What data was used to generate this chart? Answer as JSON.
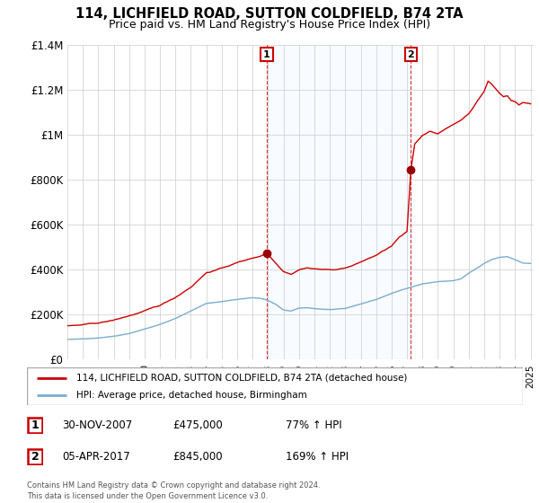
{
  "title": "114, LICHFIELD ROAD, SUTTON COLDFIELD, B74 2TA",
  "subtitle": "Price paid vs. HM Land Registry's House Price Index (HPI)",
  "legend_line1": "114, LICHFIELD ROAD, SUTTON COLDFIELD, B74 2TA (detached house)",
  "legend_line2": "HPI: Average price, detached house, Birmingham",
  "footnote": "Contains HM Land Registry data © Crown copyright and database right 2024.\nThis data is licensed under the Open Government Licence v3.0.",
  "table": [
    {
      "num": "1",
      "date": "30-NOV-2007",
      "price": "£475,000",
      "change": "77% ↑ HPI"
    },
    {
      "num": "2",
      "date": "05-APR-2017",
      "price": "£845,000",
      "change": "169% ↑ HPI"
    }
  ],
  "purchase_points": [
    {
      "year": 2007.917,
      "value": 475000,
      "label": "1"
    },
    {
      "year": 2017.25,
      "value": 845000,
      "label": "2"
    }
  ],
  "house_color": "#cc0000",
  "hpi_color": "#7aadcf",
  "point_color": "#990000",
  "shade_color": "#ddeeff",
  "vline_color": "#cc0000",
  "ylim": [
    0,
    1400000
  ],
  "yticks": [
    0,
    200000,
    400000,
    600000,
    800000,
    1000000,
    1200000,
    1400000
  ],
  "ytick_labels": [
    "£0",
    "£200K",
    "£400K",
    "£600K",
    "£800K",
    "£1M",
    "£1.2M",
    "£1.4M"
  ],
  "xlim_start": 1995.0,
  "xlim_end": 2025.2
}
